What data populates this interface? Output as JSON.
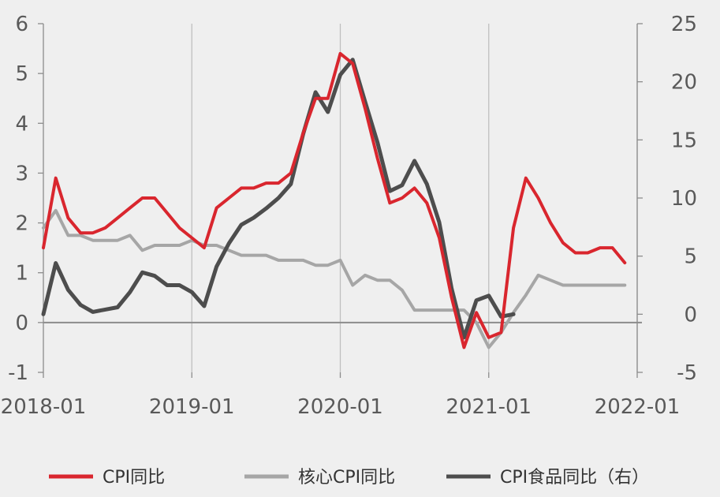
{
  "chart_data": {
    "type": "line",
    "title": "",
    "x_ticks": [
      "2018-01",
      "2019-01",
      "2020-01",
      "2021-01",
      "2022-01"
    ],
    "x_range": [
      "2018-01",
      "2022-01"
    ],
    "ylim_left": [
      -1,
      6
    ],
    "ylim_right": [
      -5,
      25
    ],
    "y_ticks_left": [
      "-1",
      "0",
      "1",
      "2",
      "3",
      "4",
      "5",
      "6"
    ],
    "y_ticks_right": [
      "-5",
      "0",
      "5",
      "10",
      "15",
      "20",
      "25"
    ],
    "grid": "vertical",
    "legend_position": "bottom",
    "series": [
      {
        "name": "CPI同比",
        "axis": "left",
        "color": "#d9262e",
        "x": [
          "2018-01",
          "2018-02",
          "2018-03",
          "2018-04",
          "2018-05",
          "2018-06",
          "2018-07",
          "2018-08",
          "2018-09",
          "2018-10",
          "2018-11",
          "2018-12",
          "2019-01",
          "2019-02",
          "2019-03",
          "2019-04",
          "2019-05",
          "2019-06",
          "2019-07",
          "2019-08",
          "2019-09",
          "2019-10",
          "2019-11",
          "2019-12",
          "2020-01",
          "2020-02",
          "2020-03",
          "2020-04",
          "2020-05",
          "2020-06",
          "2020-07",
          "2020-08",
          "2020-09",
          "2020-10",
          "2020-11",
          "2020-12",
          "2021-01",
          "2021-02",
          "2021-03",
          "2021-04",
          "2021-05",
          "2021-06",
          "2021-07",
          "2021-08",
          "2021-09",
          "2021-10",
          "2021-11",
          "2021-12"
        ],
        "values": [
          1.5,
          2.9,
          2.1,
          1.8,
          1.8,
          1.9,
          2.1,
          2.3,
          2.5,
          2.5,
          2.2,
          1.9,
          1.7,
          1.5,
          2.3,
          2.5,
          2.7,
          2.7,
          2.8,
          2.8,
          3.0,
          3.8,
          4.5,
          4.5,
          5.4,
          5.2,
          4.3,
          3.3,
          2.4,
          2.5,
          2.7,
          2.4,
          1.7,
          0.5,
          -0.5,
          0.2,
          -0.3,
          -0.2,
          1.9,
          2.9,
          2.5,
          2.0,
          1.6,
          1.4,
          1.4,
          1.5,
          1.5,
          1.2
        ]
      },
      {
        "name": "核心CPI同比",
        "axis": "left",
        "color": "#a6a6a6",
        "x": [
          "2018-01",
          "2018-02",
          "2018-03",
          "2018-04",
          "2018-05",
          "2018-06",
          "2018-07",
          "2018-08",
          "2018-09",
          "2018-10",
          "2018-11",
          "2018-12",
          "2019-01",
          "2019-02",
          "2019-03",
          "2019-04",
          "2019-05",
          "2019-06",
          "2019-07",
          "2019-08",
          "2019-09",
          "2019-10",
          "2019-11",
          "2019-12",
          "2020-01",
          "2020-02",
          "2020-03",
          "2020-04",
          "2020-05",
          "2020-06",
          "2020-07",
          "2020-08",
          "2020-09",
          "2020-10",
          "2020-11",
          "2020-12",
          "2021-01",
          "2021-02",
          "2021-03",
          "2021-04",
          "2021-05",
          "2021-06",
          "2021-07",
          "2021-08",
          "2021-09",
          "2021-10",
          "2021-11",
          "2021-12"
        ],
        "values": [
          1.9,
          2.25,
          1.75,
          1.75,
          1.65,
          1.65,
          1.65,
          1.75,
          1.45,
          1.55,
          1.55,
          1.55,
          1.65,
          1.55,
          1.55,
          1.45,
          1.35,
          1.35,
          1.35,
          1.25,
          1.25,
          1.25,
          1.15,
          1.15,
          1.25,
          0.75,
          0.95,
          0.85,
          0.85,
          0.65,
          0.25,
          0.25,
          0.25,
          0.25,
          0.25,
          0.0,
          -0.5,
          -0.2,
          0.2,
          0.55,
          0.95,
          0.85,
          0.75,
          0.75,
          0.75,
          0.75,
          0.75,
          0.75
        ]
      },
      {
        "name": "CPI食品同比（右）",
        "axis": "right",
        "color": "#4d4d4d",
        "x": [
          "2018-01",
          "2018-02",
          "2018-03",
          "2018-04",
          "2018-05",
          "2018-06",
          "2018-07",
          "2018-08",
          "2018-09",
          "2018-10",
          "2018-11",
          "2018-12",
          "2019-01",
          "2019-02",
          "2019-03",
          "2019-04",
          "2019-05",
          "2019-06",
          "2019-07",
          "2019-08",
          "2019-09",
          "2019-10",
          "2019-11",
          "2019-12",
          "2020-01",
          "2020-02",
          "2020-03",
          "2020-04",
          "2020-05",
          "2020-06",
          "2020-07",
          "2020-08",
          "2020-09",
          "2020-10",
          "2020-11",
          "2020-12",
          "2021-01",
          "2021-02",
          "2021-03"
        ],
        "values": [
          0.0,
          4.4,
          2.1,
          0.8,
          0.2,
          0.4,
          0.6,
          1.9,
          3.6,
          3.3,
          2.5,
          2.5,
          1.9,
          0.7,
          4.1,
          6.1,
          7.7,
          8.3,
          9.1,
          10.0,
          11.2,
          15.5,
          19.1,
          17.4,
          20.6,
          21.9,
          18.3,
          14.8,
          10.6,
          11.1,
          13.2,
          11.2,
          7.9,
          2.2,
          -2.0,
          1.2,
          1.6,
          -0.2,
          0.0
        ]
      }
    ]
  }
}
